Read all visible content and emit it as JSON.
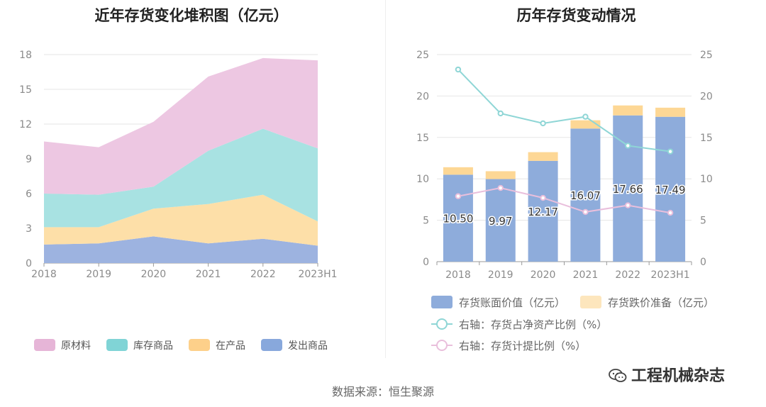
{
  "left_title": "近年存货变化堆积图（亿元）",
  "right_title": "历年存货变动情况",
  "source": "数据来源：恒生聚源",
  "watermark": "工程机械杂志",
  "chart_data": [
    {
      "type": "area",
      "stacked": true,
      "title": "近年存货变化堆积图（亿元）",
      "x": [
        "2018",
        "2019",
        "2020",
        "2021",
        "2022",
        "2023H1"
      ],
      "ylim": [
        0,
        18
      ],
      "yticks": [
        0,
        3,
        6,
        9,
        12,
        15,
        18
      ],
      "grid": true,
      "legend": "bottom",
      "series": [
        {
          "name": "发出商品",
          "values": [
            1.6,
            1.7,
            2.3,
            1.7,
            2.1,
            1.5
          ],
          "color": "#9db3e0"
        },
        {
          "name": "在产品",
          "values": [
            1.5,
            1.4,
            2.4,
            3.4,
            3.8,
            2.1
          ],
          "color": "#fddfa8"
        },
        {
          "name": "库存商品",
          "values": [
            2.9,
            2.8,
            1.9,
            4.6,
            5.7,
            6.3
          ],
          "color": "#a8e2e2"
        },
        {
          "name": "原材料",
          "values": [
            4.5,
            4.1,
            5.6,
            6.4,
            6.1,
            7.6
          ],
          "color": "#edc7e2"
        }
      ],
      "legend_order": [
        "原材料",
        "库存商品",
        "在产品",
        "发出商品"
      ],
      "legend_colors": {
        "原材料": "#e6b5d7",
        "库存商品": "#80d4d6",
        "在产品": "#fdd08a",
        "发出商品": "#88a8dc"
      }
    },
    {
      "type": "bar",
      "stacked": true,
      "title": "历年存货变动情况",
      "categories": [
        "2018",
        "2019",
        "2020",
        "2021",
        "2022",
        "2023H1"
      ],
      "ylim": [
        0,
        25
      ],
      "yticks": [
        0,
        5,
        10,
        15,
        20,
        25
      ],
      "y2lim": [
        0,
        25
      ],
      "y2ticks": [
        0,
        5,
        10,
        15,
        20,
        25
      ],
      "grid": true,
      "legend": "bottom",
      "series": [
        {
          "name": "存货账面价值（亿元）",
          "type": "bar",
          "axis": "left",
          "values": [
            10.5,
            9.97,
            12.17,
            16.07,
            17.66,
            17.49
          ],
          "labels": [
            "10.50",
            "9.97",
            "12.17",
            "16.07",
            "17.66",
            "17.49"
          ],
          "color": "#8eacdb"
        },
        {
          "name": "存货跌价准备（亿元）",
          "type": "bar",
          "axis": "left",
          "values": [
            0.9,
            0.95,
            1.05,
            1.0,
            1.2,
            1.1
          ],
          "color": "#fdd795"
        },
        {
          "name": "右轴：存货占净资产比例（%）",
          "type": "line",
          "axis": "right",
          "values": [
            23.2,
            17.9,
            16.7,
            17.5,
            14.0,
            13.3
          ],
          "color": "#8fd6d6"
        },
        {
          "name": "右轴：存货计提比例（%）",
          "type": "line",
          "axis": "right",
          "values": [
            7.9,
            8.9,
            7.7,
            6.0,
            6.8,
            5.9
          ],
          "color": "#e9bfdc"
        }
      ]
    }
  ]
}
